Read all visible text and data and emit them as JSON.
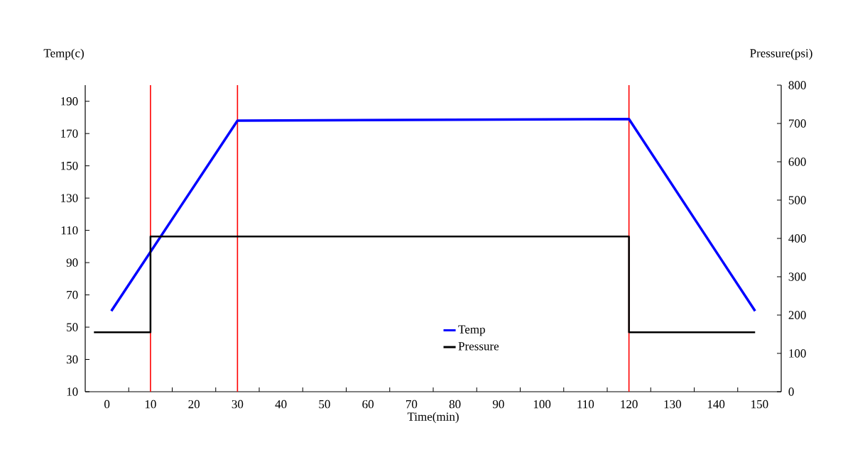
{
  "chart_data": {
    "type": "line",
    "xlabel": "Time(min)",
    "ylabel": "Temp(c)",
    "y2label": "Pressure(psi)",
    "xlim": [
      -5,
      155
    ],
    "xticks": [
      0,
      10,
      20,
      30,
      40,
      50,
      60,
      70,
      80,
      90,
      100,
      110,
      120,
      130,
      140,
      150,
      {
        "value": 5,
        "label": null
      },
      {
        "value": 15,
        "label": null
      },
      {
        "value": 25,
        "label": null
      },
      {
        "value": 35,
        "label": null
      },
      {
        "value": 45,
        "label": null
      },
      {
        "value": 55,
        "label": null
      },
      {
        "value": 65,
        "label": null
      },
      {
        "value": 75,
        "label": null
      },
      {
        "value": 85,
        "label": null
      },
      {
        "value": 95,
        "label": null
      },
      {
        "value": 105,
        "label": null
      },
      {
        "value": 115,
        "label": null
      },
      {
        "value": 125,
        "label": null
      },
      {
        "value": 135,
        "label": null
      },
      {
        "value": 145,
        "label": null
      }
    ],
    "ylim": [
      10,
      200
    ],
    "yticks": [
      10,
      30,
      50,
      70,
      90,
      110,
      130,
      150,
      170,
      190
    ],
    "y2lim": [
      0,
      800
    ],
    "y2ticks": [
      0,
      100,
      200,
      300,
      400,
      500,
      600,
      700,
      800
    ],
    "grid": false,
    "legend": "bottom",
    "marker": "none",
    "series": [
      {
        "name": "Temp",
        "color": "#0000ff",
        "x": [
          1,
          30,
          120,
          149
        ],
        "values": [
          60,
          178,
          179,
          60
        ]
      },
      {
        "name": "Pressure",
        "type": "step",
        "axis": "y2",
        "color": "#000000",
        "x": [
          -3,
          10,
          120,
          149
        ],
        "values": [
          155,
          405,
          155,
          155
        ]
      }
    ],
    "ref_lines": [
      {
        "axis": "x",
        "value": 10,
        "color": "#ff0000"
      },
      {
        "axis": "x",
        "value": 30,
        "color": "#ff0000"
      },
      {
        "axis": "x",
        "value": 120,
        "color": "#ff0000"
      }
    ]
  }
}
